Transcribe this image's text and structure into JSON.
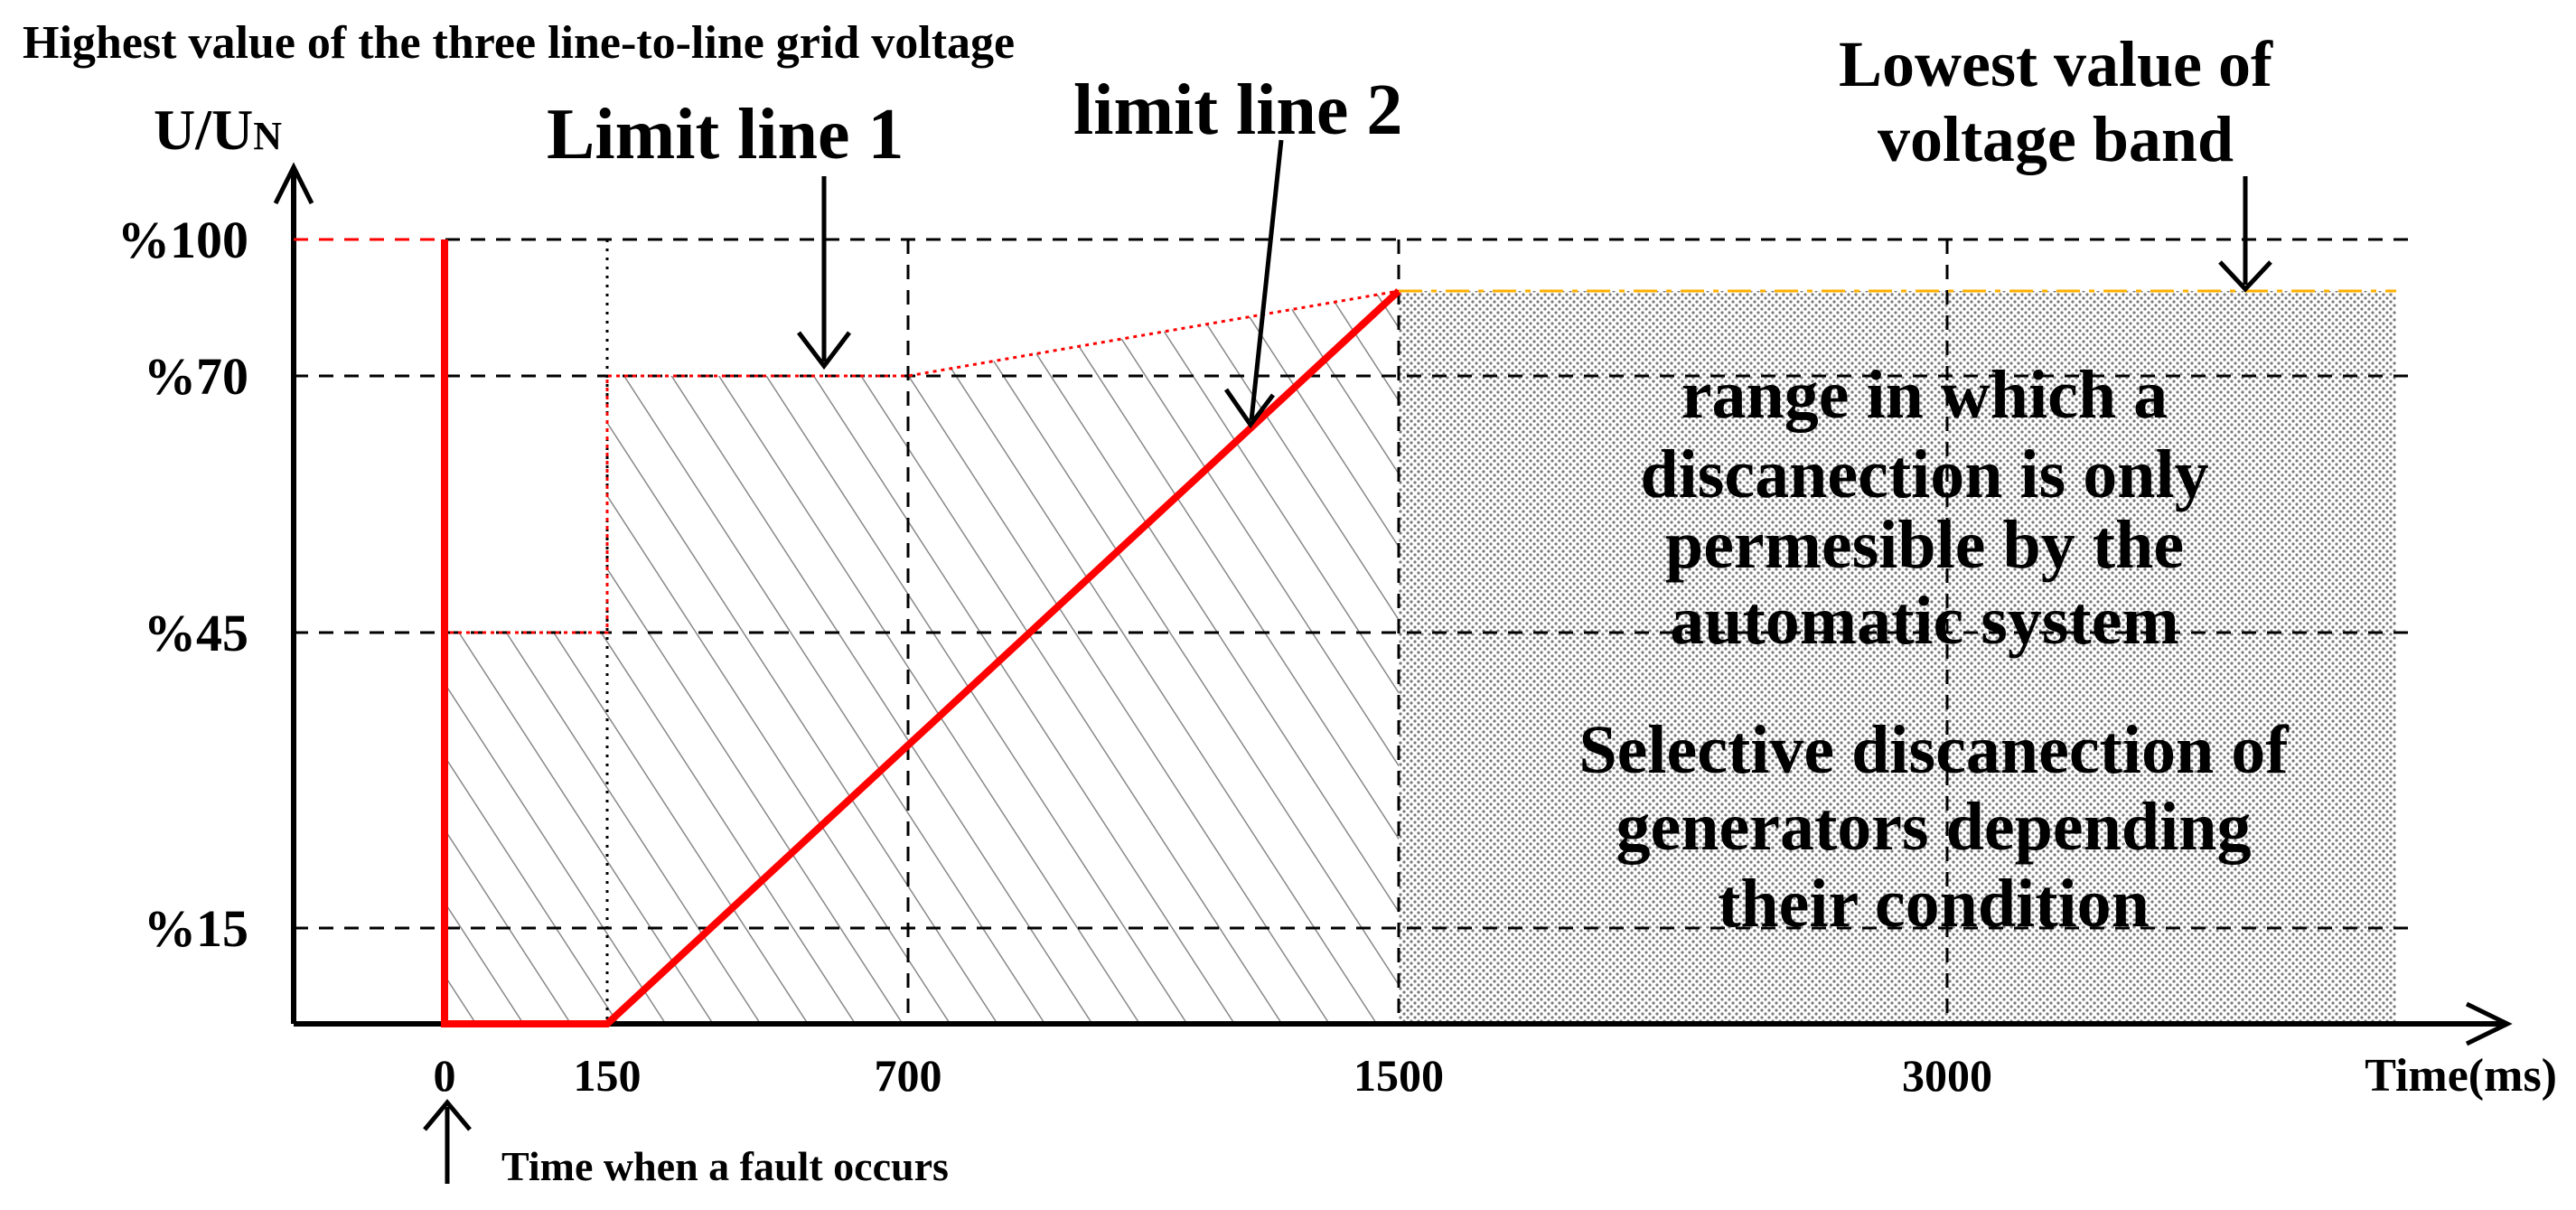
{
  "chart_data": {
    "type": "line",
    "title": "Highest value of the three line-to-line grid voltage",
    "ylabel_main": "U/U",
    "ylabel_sub": "N",
    "xlabel": "Time(ms)",
    "x_ticks": [
      {
        "value": 0,
        "label": "0"
      },
      {
        "value": 150,
        "label": "150"
      },
      {
        "value": 700,
        "label": "700"
      },
      {
        "value": 1500,
        "label": "1500"
      },
      {
        "value": 3000,
        "label": "3000"
      }
    ],
    "y_ticks": [
      {
        "value": 100,
        "label": "%100"
      },
      {
        "value": 70,
        "label": "%70"
      },
      {
        "value": 45,
        "label": "%45"
      },
      {
        "value": 15,
        "label": "%15"
      }
    ],
    "series": [
      {
        "name": "Limit line 1",
        "color": "#ff0000",
        "style": "dotted",
        "points": [
          [
            0,
            100
          ],
          [
            0,
            45
          ],
          [
            150,
            45
          ],
          [
            150,
            70
          ],
          [
            700,
            70
          ],
          [
            1500,
            90
          ]
        ]
      },
      {
        "name": "limit line 2",
        "color": "#ff0000",
        "style": "solid",
        "points": [
          [
            0,
            100
          ],
          [
            0,
            0
          ],
          [
            150,
            0
          ],
          [
            1500,
            90
          ]
        ]
      },
      {
        "name": "Lowest value of voltage band",
        "color": "#ffb000",
        "style": "dash-dot",
        "points": [
          [
            1500,
            90
          ],
          [
            3500,
            90
          ]
        ]
      }
    ],
    "annotations": {
      "limit_line_1": "Limit line 1",
      "limit_line_2": "limit line 2",
      "lowest_band_line1": "Lowest value of",
      "lowest_band_line2": "voltage band",
      "range_text": [
        "range in which a",
        "discanection is only",
        "permesible by the",
        "automatic system"
      ],
      "selective_text": [
        "Selective discanection of",
        "generators depending",
        "their condition"
      ],
      "fault_text": "Time when a fault occurs"
    }
  }
}
